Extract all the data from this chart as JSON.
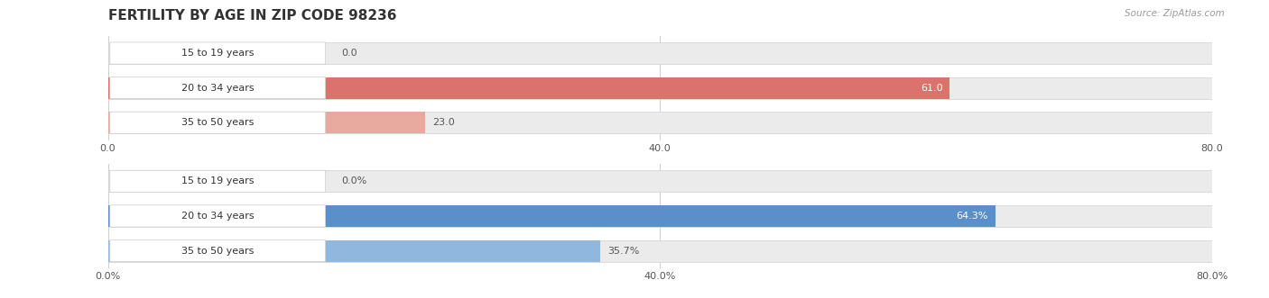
{
  "title": "FERTILITY BY AGE IN ZIP CODE 98236",
  "source_text": "Source: ZipAtlas.com",
  "top_chart": {
    "categories": [
      "15 to 19 years",
      "20 to 34 years",
      "35 to 50 years"
    ],
    "values": [
      0.0,
      61.0,
      23.0
    ],
    "value_labels": [
      "0.0",
      "61.0",
      "23.0"
    ],
    "xlim": [
      0,
      80
    ],
    "xticks": [
      0.0,
      40.0,
      80.0
    ],
    "xtick_labels": [
      "0.0",
      "40.0",
      "80.0"
    ],
    "bar_color_full": "#d9736b",
    "bar_color_light": "#e8a99e",
    "bar_bg_color": "#ebebeb",
    "bar_border_color": "#d0d0d0",
    "label_inside_color": "#ffffff",
    "label_outside_color": "#555555",
    "value_threshold": 55
  },
  "bottom_chart": {
    "categories": [
      "15 to 19 years",
      "20 to 34 years",
      "35 to 50 years"
    ],
    "values": [
      0.0,
      64.3,
      35.7
    ],
    "value_labels": [
      "0.0%",
      "64.3%",
      "35.7%"
    ],
    "xlim": [
      0,
      80
    ],
    "xticks": [
      0.0,
      40.0,
      80.0
    ],
    "xtick_labels": [
      "0.0%",
      "40.0%",
      "80.0%"
    ],
    "bar_color_full": "#5b8fc9",
    "bar_color_light": "#90b8df",
    "bar_bg_color": "#ebebeb",
    "bar_border_color": "#d0d0d0",
    "label_inside_color": "#ffffff",
    "label_outside_color": "#555555",
    "value_threshold": 55
  },
  "fig_width": 14.06,
  "fig_height": 3.31,
  "dpi": 100,
  "bg_color": "#ffffff",
  "bar_height": 0.62,
  "label_fontsize": 8,
  "title_fontsize": 11,
  "tick_fontsize": 8,
  "source_fontsize": 7.5,
  "category_fontsize": 8
}
